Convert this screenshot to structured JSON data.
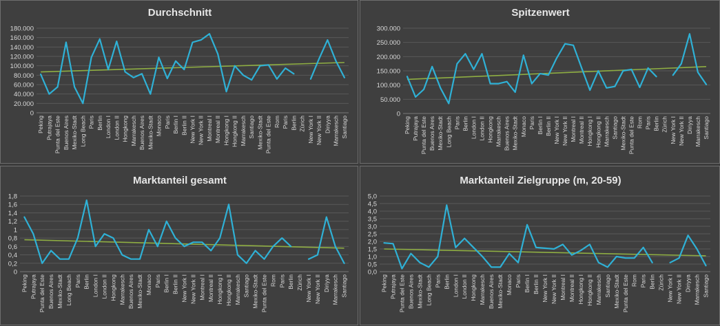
{
  "colors": {
    "background": "#3f3f3f",
    "series": "#2fb1d6",
    "trendline": "#8fae43",
    "gridline": "#595959",
    "text": "#d9d9d9"
  },
  "chart_data": [
    {
      "type": "line",
      "title": "Durchschnitt",
      "categories": [
        "Peking",
        "Putrajaya",
        "Punta del Este",
        "Buenos Aires",
        "Mexiko-Stadt",
        "Long Beach",
        "Paris",
        "Berlin",
        "London I",
        "London II",
        "Hongkong",
        "Marrakesch",
        "Buenos Aires",
        "Mexiko-Stadt",
        "Monaco",
        "Paris",
        "Berlin I",
        "Berlin II",
        "New York I",
        "New York II",
        "Montreal I",
        "Montreal II",
        "Hongkong I",
        "Hongkong II",
        "Marrakesch",
        "Santiago",
        "Mexiko-Stadt",
        "Punta del Este",
        "Rom",
        "Paris",
        "Berlin",
        "Zürich",
        "New York I",
        "New York II",
        "Diriyya",
        "Marrakesch",
        "Santiago"
      ],
      "values": [
        82000,
        40000,
        55000,
        150000,
        55000,
        20000,
        118000,
        157000,
        92000,
        152000,
        87000,
        75000,
        83000,
        40000,
        118000,
        73000,
        110000,
        92000,
        150000,
        155000,
        168000,
        125000,
        45000,
        100000,
        80000,
        70000,
        100000,
        102000,
        72000,
        95000,
        83000,
        null,
        72000,
        115000,
        155000,
        110000,
        75000
      ],
      "trendline": {
        "start": 87000,
        "end": 107000
      },
      "ylim": [
        0,
        180000
      ],
      "yticks": [
        "0",
        "20.000",
        "40.000",
        "60.000",
        "80.000",
        "100.000",
        "120.000",
        "140.000",
        "160.000",
        "180.000"
      ],
      "ytick_values": [
        0,
        20000,
        40000,
        60000,
        80000,
        100000,
        120000,
        140000,
        160000,
        180000
      ],
      "grid": true,
      "legend": "none"
    },
    {
      "type": "line",
      "title": "Spitzenwert",
      "categories": [
        "Peking",
        "Putrajaya",
        "Punta del Este",
        "Buenos Aires",
        "Mexiko-Stadt",
        "Long Beach",
        "Paris",
        "Berlin",
        "London I",
        "London II",
        "Hongkong",
        "Marrakesch",
        "Buenos Aires",
        "Mexiko-Stadt",
        "Monaco",
        "Paris",
        "Berlin I",
        "Berlin II",
        "New York I",
        "New York II",
        "Montreal I",
        "Montreal II",
        "Hongkong I",
        "Hongkong II",
        "Marrakesch",
        "Santiago",
        "Mexiko-Stadt",
        "Punta del Este",
        "Rom",
        "Paris",
        "Berlin",
        "Zürich",
        "New York I",
        "New York II",
        "Diriyya",
        "Marrakesch",
        "Santiago"
      ],
      "values": [
        130000,
        58000,
        85000,
        165000,
        90000,
        35000,
        175000,
        210000,
        155000,
        210000,
        105000,
        105000,
        112000,
        75000,
        205000,
        105000,
        140000,
        135000,
        195000,
        245000,
        240000,
        160000,
        82000,
        150000,
        90000,
        95000,
        150000,
        155000,
        92000,
        160000,
        130000,
        null,
        135000,
        175000,
        280000,
        145000,
        102000
      ],
      "trendline": {
        "start": 120000,
        "end": 165000
      },
      "ylim": [
        0,
        300000
      ],
      "yticks": [
        "0",
        "50.000",
        "100.000",
        "150.000",
        "200.000",
        "250.000",
        "300.000"
      ],
      "ytick_values": [
        0,
        50000,
        100000,
        150000,
        200000,
        250000,
        300000
      ],
      "grid": true,
      "legend": "none"
    },
    {
      "type": "line",
      "title": "Marktanteil gesamt",
      "categories": [
        "Peking",
        "Putrajaya",
        "Punta del Este",
        "Buenos Aires",
        "Mexiko-Stadt",
        "Long Beach",
        "Paris",
        "Berlin",
        "London I",
        "London II",
        "Hongkong",
        "Marrakesch",
        "Buenos Aires",
        "Mexiko-Stadt",
        "Monaco",
        "Paris",
        "Berlin I",
        "Berlin II",
        "New York I",
        "New York II",
        "Montreal I",
        "Montreal II",
        "Hongkong I",
        "Hongkong II",
        "Marrakesch",
        "Santiago",
        "Mexiko-Stadt",
        "Punta del Este",
        "Rom",
        "Paris",
        "Berlin",
        "Zürich",
        "New York I",
        "New York II",
        "Diriyya",
        "Marrakesch",
        "Santiago"
      ],
      "values": [
        1.3,
        0.9,
        0.2,
        0.5,
        0.3,
        0.3,
        0.8,
        1.7,
        0.6,
        0.9,
        0.8,
        0.4,
        0.3,
        0.3,
        1.0,
        0.6,
        1.2,
        0.8,
        0.6,
        0.7,
        0.7,
        0.5,
        0.8,
        1.6,
        0.4,
        0.2,
        0.5,
        0.3,
        0.6,
        0.8,
        0.6,
        null,
        0.3,
        0.4,
        1.3,
        0.6,
        0.2
      ],
      "trendline": {
        "start": 0.76,
        "end": 0.56
      },
      "ylim": [
        0,
        1.8
      ],
      "yticks": [
        "0",
        "0,2",
        "0,4",
        "0,6",
        "0,8",
        "1",
        "1,2",
        "1,4",
        "1,6",
        "1,8"
      ],
      "ytick_values": [
        0,
        0.2,
        0.4,
        0.6,
        0.8,
        1.0,
        1.2,
        1.4,
        1.6,
        1.8
      ],
      "grid": true,
      "legend": "none"
    },
    {
      "type": "line",
      "title": "Marktanteil Zielgruppe (m, 20-59)",
      "categories": [
        "Peking",
        "Putrajaya",
        "Punta del Este",
        "Buenos Aires",
        "Mexiko-Stadt",
        "Long Beach",
        "Paris",
        "Berlin",
        "London I",
        "London II",
        "Hongkong",
        "Marrakesch",
        "Buenos Aires",
        "Mexiko-Stadt",
        "Monaco",
        "Paris",
        "Berlin I",
        "Berlin II",
        "New York I",
        "New York II",
        "Montreal I",
        "Montreal II",
        "Hongkong I",
        "Hongkong II",
        "Marrakesch",
        "Santiago",
        "Mexiko-Stadt",
        "Punta del Este",
        "Rom",
        "Paris",
        "Berlin",
        "Zürich",
        "New York I",
        "New York II",
        "Diriyya",
        "Marrakesch",
        "Santiago"
      ],
      "values": [
        1.9,
        1.85,
        0.2,
        1.2,
        0.6,
        0.3,
        1.0,
        4.4,
        1.6,
        2.2,
        1.6,
        1.0,
        0.3,
        0.3,
        1.2,
        0.6,
        3.1,
        1.6,
        1.55,
        1.5,
        1.8,
        1.1,
        1.4,
        1.8,
        0.6,
        0.3,
        1.0,
        0.9,
        0.9,
        1.6,
        0.6,
        null,
        0.6,
        0.9,
        2.4,
        1.5,
        0.4
      ],
      "trendline": {
        "start": 1.5,
        "end": 1.05
      },
      "ylim": [
        0,
        5.0
      ],
      "yticks": [
        "0,0",
        "0,5",
        "1,0",
        "1,5",
        "2,0",
        "2,5",
        "3,0",
        "3,5",
        "4,0",
        "4,5",
        "5,0"
      ],
      "ytick_values": [
        0,
        0.5,
        1.0,
        1.5,
        2.0,
        2.5,
        3.0,
        3.5,
        4.0,
        4.5,
        5.0
      ],
      "grid": true,
      "legend": "none"
    }
  ]
}
